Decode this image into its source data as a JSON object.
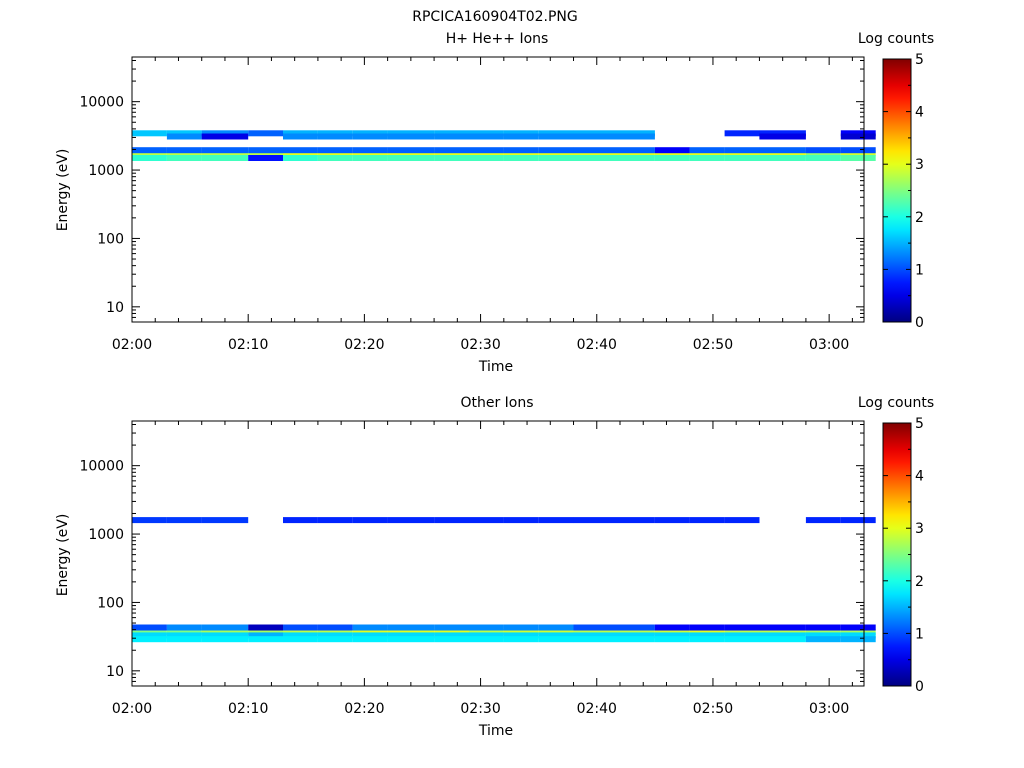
{
  "figure": {
    "title": "RPCICA160904T02.PNG"
  },
  "chart_data": [
    {
      "type": "heatmap",
      "title": "H+ He++ Ions",
      "xlabel": "Time",
      "ylabel": "Energy (eV)",
      "x_ticks": [
        "02:00",
        "02:10",
        "02:20",
        "02:30",
        "02:40",
        "02:50",
        "03:00"
      ],
      "x_range": [
        "02:00",
        "03:03"
      ],
      "y_scale": "log",
      "y_ticks": [
        "10",
        "100",
        "1000",
        "10000"
      ],
      "ylim": [
        6,
        45000
      ],
      "colorbar": {
        "label": "Log counts",
        "ticks": [
          "0",
          "1",
          "2",
          "3",
          "4",
          "5"
        ],
        "range": [
          0,
          5
        ]
      },
      "time_bins": [
        "02:00",
        "02:03",
        "02:06",
        "02:10",
        "02:13",
        "02:16",
        "02:19",
        "02:22",
        "02:26",
        "02:29",
        "02:32",
        "02:35",
        "02:38",
        "02:42",
        "02:45",
        "02:48",
        "02:51",
        "02:54",
        "02:58",
        "03:01"
      ],
      "bands": [
        {
          "energy": 1750,
          "values": [
            2.8,
            2.8,
            2.8,
            2.8,
            3.0,
            3.0,
            3.0,
            3.0,
            3.0,
            3.0,
            3.0,
            3.0,
            3.0,
            3.0,
            3.0,
            3.0,
            3.0,
            3.0,
            2.6,
            2.9
          ]
        },
        {
          "energy": 1500,
          "values": [
            2.1,
            2.2,
            2.2,
            0.7,
            2.1,
            2.2,
            2.2,
            2.2,
            2.2,
            2.2,
            2.2,
            2.2,
            2.2,
            2.2,
            2.2,
            2.2,
            2.2,
            2.2,
            2.2,
            2.3
          ]
        },
        {
          "energy": 1950,
          "values": [
            1.1,
            1.1,
            1.1,
            1.1,
            1.1,
            1.1,
            1.1,
            1.1,
            1.1,
            1.1,
            1.1,
            1.1,
            1.1,
            1.1,
            0.6,
            1.1,
            1.1,
            1.1,
            1.0,
            1.0
          ]
        },
        {
          "energy": 3450,
          "values": [
            1.6,
            1.6,
            1.3,
            1.1,
            1.5,
            1.5,
            1.5,
            1.5,
            1.5,
            1.5,
            1.5,
            1.5,
            1.5,
            1.5,
            null,
            null,
            0.8,
            0.8,
            null,
            0.6
          ]
        },
        {
          "energy": 3100,
          "values": [
            null,
            1.3,
            0.5,
            null,
            1.3,
            1.3,
            1.3,
            1.3,
            1.3,
            1.3,
            1.3,
            1.3,
            1.3,
            1.3,
            null,
            null,
            null,
            0.5,
            null,
            0.4
          ]
        }
      ]
    },
    {
      "type": "heatmap",
      "title": "Other Ions",
      "xlabel": "Time",
      "ylabel": "Energy (eV)",
      "x_ticks": [
        "02:00",
        "02:10",
        "02:20",
        "02:30",
        "02:40",
        "02:50",
        "03:00"
      ],
      "x_range": [
        "02:00",
        "03:03"
      ],
      "y_scale": "log",
      "y_ticks": [
        "10",
        "100",
        "1000",
        "10000"
      ],
      "ylim": [
        6,
        45000
      ],
      "colorbar": {
        "label": "Log counts",
        "ticks": [
          "0",
          "1",
          "2",
          "3",
          "4",
          "5"
        ],
        "range": [
          0,
          5
        ]
      },
      "time_bins": [
        "02:00",
        "02:03",
        "02:06",
        "02:10",
        "02:13",
        "02:16",
        "02:19",
        "02:22",
        "02:26",
        "02:29",
        "02:32",
        "02:35",
        "02:38",
        "02:42",
        "02:45",
        "02:48",
        "02:51",
        "02:54",
        "02:58",
        "03:01"
      ],
      "bands": [
        {
          "energy": 37,
          "values": [
            2.5,
            2.5,
            2.7,
            2.7,
            2.8,
            2.8,
            3.0,
            3.0,
            3.0,
            2.8,
            2.9,
            2.9,
            2.8,
            2.8,
            2.9,
            3.0,
            2.8,
            2.8,
            2.7,
            2.7
          ]
        },
        {
          "energy": 33,
          "values": [
            1.7,
            1.7,
            1.7,
            1.5,
            1.7,
            1.7,
            1.7,
            1.7,
            1.7,
            1.7,
            1.7,
            1.7,
            1.7,
            1.7,
            1.7,
            1.7,
            1.7,
            1.7,
            1.7,
            1.7
          ]
        },
        {
          "energy": 29,
          "values": [
            1.8,
            1.8,
            1.8,
            1.8,
            1.8,
            1.8,
            1.8,
            1.8,
            1.8,
            1.8,
            1.8,
            1.8,
            1.8,
            1.8,
            1.8,
            1.8,
            1.8,
            1.8,
            1.5,
            1.5
          ]
        },
        {
          "energy": 43,
          "values": [
            1.0,
            1.3,
            1.3,
            0.3,
            1.0,
            1.0,
            1.3,
            1.3,
            1.3,
            1.3,
            1.3,
            1.3,
            1.0,
            1.0,
            0.6,
            0.6,
            0.6,
            0.6,
            0.6,
            0.6
          ]
        },
        {
          "energy": 1600,
          "values": [
            0.9,
            0.9,
            0.9,
            null,
            0.8,
            0.8,
            0.8,
            0.8,
            0.8,
            0.8,
            0.8,
            0.8,
            0.8,
            0.8,
            0.8,
            0.8,
            0.8,
            null,
            0.8,
            0.8
          ]
        }
      ]
    }
  ]
}
